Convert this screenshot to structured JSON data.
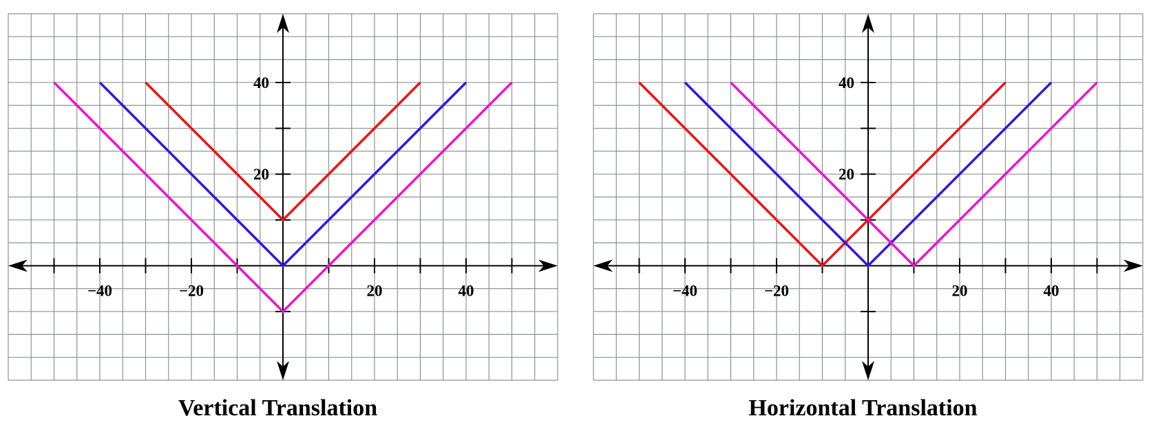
{
  "colors": {
    "grid": "#8c9196",
    "axis": "#000000",
    "red": "#ee1111",
    "blue": "#3311ee",
    "magenta": "#ee11cc"
  },
  "chart_data": [
    {
      "type": "line",
      "title": "Vertical Translation",
      "xlabel": "",
      "ylabel": "",
      "xlim": [
        -60,
        60
      ],
      "ylim": [
        -25,
        55
      ],
      "grid": true,
      "grid_step": 5,
      "x_ticks": [
        -50,
        -40,
        -30,
        -20,
        -10,
        10,
        20,
        30,
        40,
        50
      ],
      "y_ticks": [
        -10,
        10,
        20,
        30,
        40
      ],
      "x_tick_labels": [
        {
          "value": -40,
          "text": "−40"
        },
        {
          "value": -20,
          "text": "−20"
        },
        {
          "value": 20,
          "text": "20"
        },
        {
          "value": 40,
          "text": "40"
        }
      ],
      "y_tick_labels": [
        {
          "value": 20,
          "text": "20"
        },
        {
          "value": 40,
          "text": "40"
        }
      ],
      "series": [
        {
          "color": "#ee1111",
          "x": [
            -30,
            0,
            30
          ],
          "y": [
            40,
            10,
            40
          ]
        },
        {
          "color": "#3311ee",
          "x": [
            -40,
            0,
            40
          ],
          "y": [
            40,
            0,
            40
          ]
        },
        {
          "color": "#ee11cc",
          "x": [
            -50,
            0,
            50
          ],
          "y": [
            40,
            -10,
            40
          ]
        }
      ]
    },
    {
      "type": "line",
      "title": "Horizontal Translation",
      "xlabel": "",
      "ylabel": "",
      "xlim": [
        -60,
        60
      ],
      "ylim": [
        -25,
        55
      ],
      "grid": true,
      "grid_step": 5,
      "x_ticks": [
        -50,
        -40,
        -30,
        -20,
        -10,
        10,
        20,
        30,
        40,
        50
      ],
      "y_ticks": [
        -10,
        10,
        20,
        30,
        40
      ],
      "x_tick_labels": [
        {
          "value": -40,
          "text": "−40"
        },
        {
          "value": -20,
          "text": "−20"
        },
        {
          "value": 20,
          "text": "20"
        },
        {
          "value": 40,
          "text": "40"
        }
      ],
      "y_tick_labels": [
        {
          "value": 20,
          "text": "20"
        },
        {
          "value": 40,
          "text": "40"
        }
      ],
      "series": [
        {
          "color": "#ee1111",
          "x": [
            -50,
            -10,
            30
          ],
          "y": [
            40,
            0,
            40
          ]
        },
        {
          "color": "#3311ee",
          "x": [
            -40,
            0,
            40
          ],
          "y": [
            40,
            0,
            40
          ]
        },
        {
          "color": "#ee11cc",
          "x": [
            -30,
            10,
            50
          ],
          "y": [
            40,
            0,
            40
          ]
        }
      ]
    }
  ]
}
